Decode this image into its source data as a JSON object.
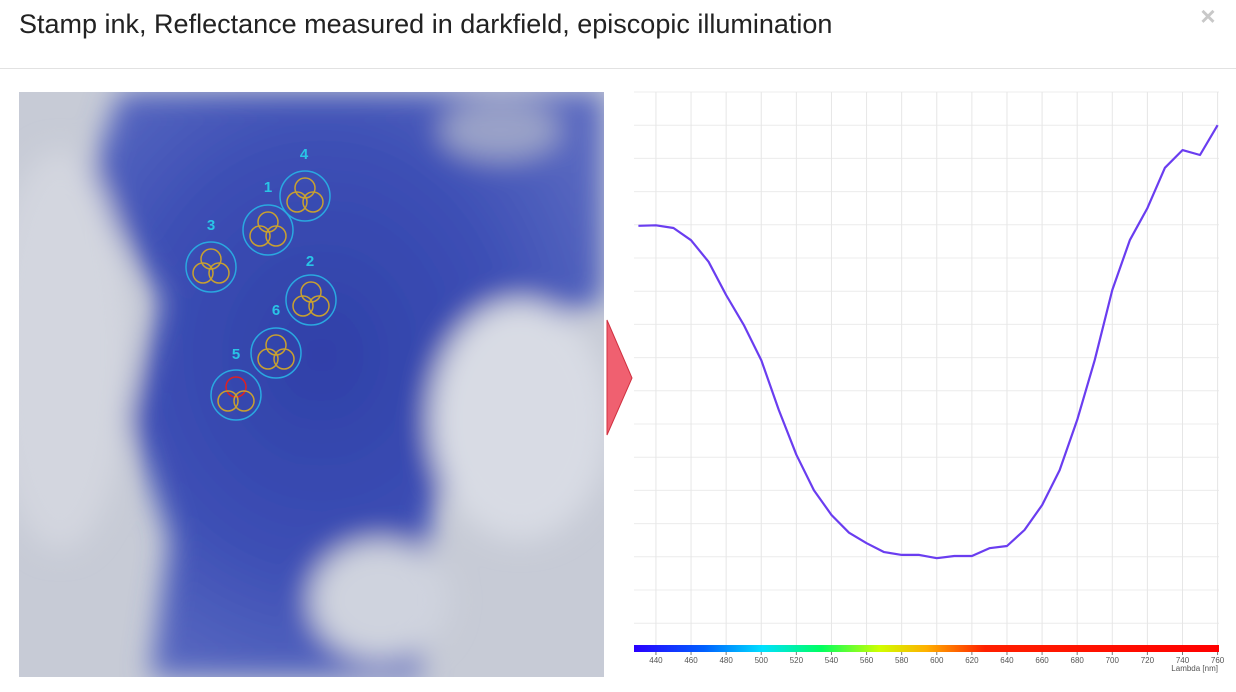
{
  "header": {
    "title": "Stamp ink, Reflectance measured in darkfield, episcopic illumination",
    "close": "×"
  },
  "image": {
    "spots": [
      "1",
      "2",
      "3",
      "4",
      "5",
      "6"
    ]
  },
  "chart_data": {
    "type": "line",
    "xlabel": "Lambda [nm]",
    "x": [
      430,
      440,
      450,
      460,
      470,
      480,
      490,
      500,
      510,
      520,
      530,
      540,
      550,
      560,
      570,
      580,
      590,
      600,
      610,
      620,
      630,
      640,
      650,
      660,
      670,
      680,
      690,
      700,
      710,
      720,
      730,
      740,
      750,
      760
    ],
    "series": [
      {
        "color": "#6a3df0",
        "values": [
          75.8,
          75.9,
          75.4,
          73.2,
          69.3,
          63.3,
          57.9,
          51.5,
          42.5,
          34.4,
          28.0,
          23.5,
          20.3,
          18.4,
          16.8,
          16.3,
          16.3,
          15.7,
          16.1,
          16.1,
          17.5,
          17.9,
          20.8,
          25.3,
          31.6,
          40.7,
          51.5,
          64.2,
          73.2,
          79.0,
          86.3,
          89.5,
          88.6,
          94.0
        ]
      }
    ],
    "xlim": [
      427.5,
      760.8
    ],
    "ylim": [
      0,
      100
    ],
    "xticks": [
      440,
      460,
      480,
      500,
      520,
      540,
      560,
      580,
      600,
      620,
      640,
      660,
      680,
      700,
      720,
      740,
      760
    ],
    "grid": true
  }
}
